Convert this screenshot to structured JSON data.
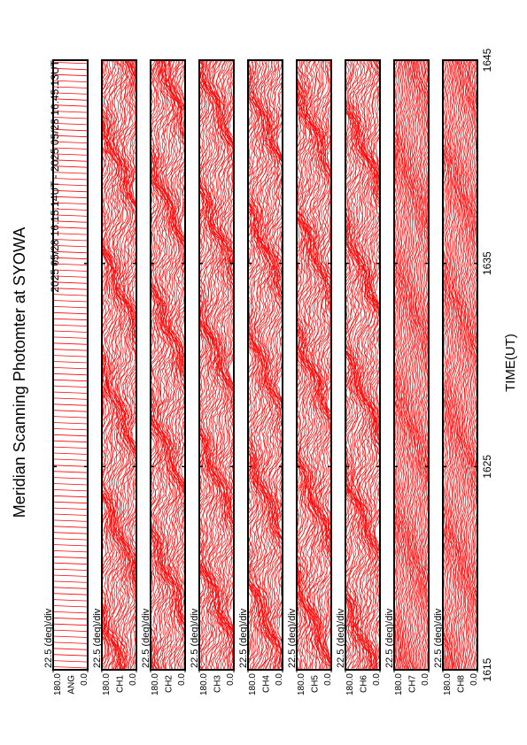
{
  "chart_data": {
    "type": "line",
    "title": "Meridian Scanning Photomter at SYOWA",
    "subtitle": "2025 05/28 16:15:14UT - 2025 05/28 16:45:13UT",
    "xlabel": "TIME(UT)",
    "xlim": [
      1615,
      1645
    ],
    "xticks": [
      1615,
      1625,
      1635,
      1645
    ],
    "color": "#ff0000",
    "panels": [
      {
        "label": "ANG",
        "scale": "22.5 (deg)/div",
        "ylim": [
          0,
          180
        ],
        "yticks": [
          {
            "value": 180,
            "label": "180.0"
          },
          {
            "value": 0,
            "label": "0.0"
          }
        ]
      },
      {
        "label": "CH1",
        "scale": "22.5 (deg)/div",
        "ylim": [
          0,
          180
        ],
        "yticks": [
          {
            "value": 180,
            "label": "180.0"
          },
          {
            "value": 0,
            "label": "0.0"
          }
        ]
      },
      {
        "label": "CH2",
        "scale": "22.5 (deg)/div",
        "ylim": [
          0,
          180
        ],
        "yticks": [
          {
            "value": 180,
            "label": "180.0"
          },
          {
            "value": 0,
            "label": "0.0"
          }
        ]
      },
      {
        "label": "CH3",
        "scale": "22.5 (deg)/div",
        "ylim": [
          0,
          180
        ],
        "yticks": [
          {
            "value": 180,
            "label": "180.0"
          },
          {
            "value": 0,
            "label": "0.0"
          }
        ]
      },
      {
        "label": "CH4",
        "scale": "22.5 (deg)/div",
        "ylim": [
          0,
          180
        ],
        "yticks": [
          {
            "value": 180,
            "label": "180.0"
          },
          {
            "value": 0,
            "label": "0.0"
          }
        ]
      },
      {
        "label": "CH5",
        "scale": "22.5 (deg)/div",
        "ylim": [
          0,
          180
        ],
        "yticks": [
          {
            "value": 180,
            "label": "180.0"
          },
          {
            "value": 0,
            "label": "0.0"
          }
        ]
      },
      {
        "label": "CH6",
        "scale": "22.5 (deg)/div",
        "ylim": [
          0,
          180
        ],
        "yticks": [
          {
            "value": 180,
            "label": "180.0"
          },
          {
            "value": 0,
            "label": "0.0"
          }
        ]
      },
      {
        "label": "CH7",
        "scale": "22.5 (deg)/div",
        "ylim": [
          0,
          180
        ],
        "yticks": [
          {
            "value": 180,
            "label": "180.0"
          },
          {
            "value": 0,
            "label": "0.0"
          }
        ]
      },
      {
        "label": "CH8",
        "scale": "22.5 (deg)/div",
        "ylim": [
          0,
          180
        ],
        "yticks": [
          {
            "value": 180,
            "label": "180.0"
          },
          {
            "value": 0,
            "label": "0.0"
          }
        ]
      }
    ]
  }
}
